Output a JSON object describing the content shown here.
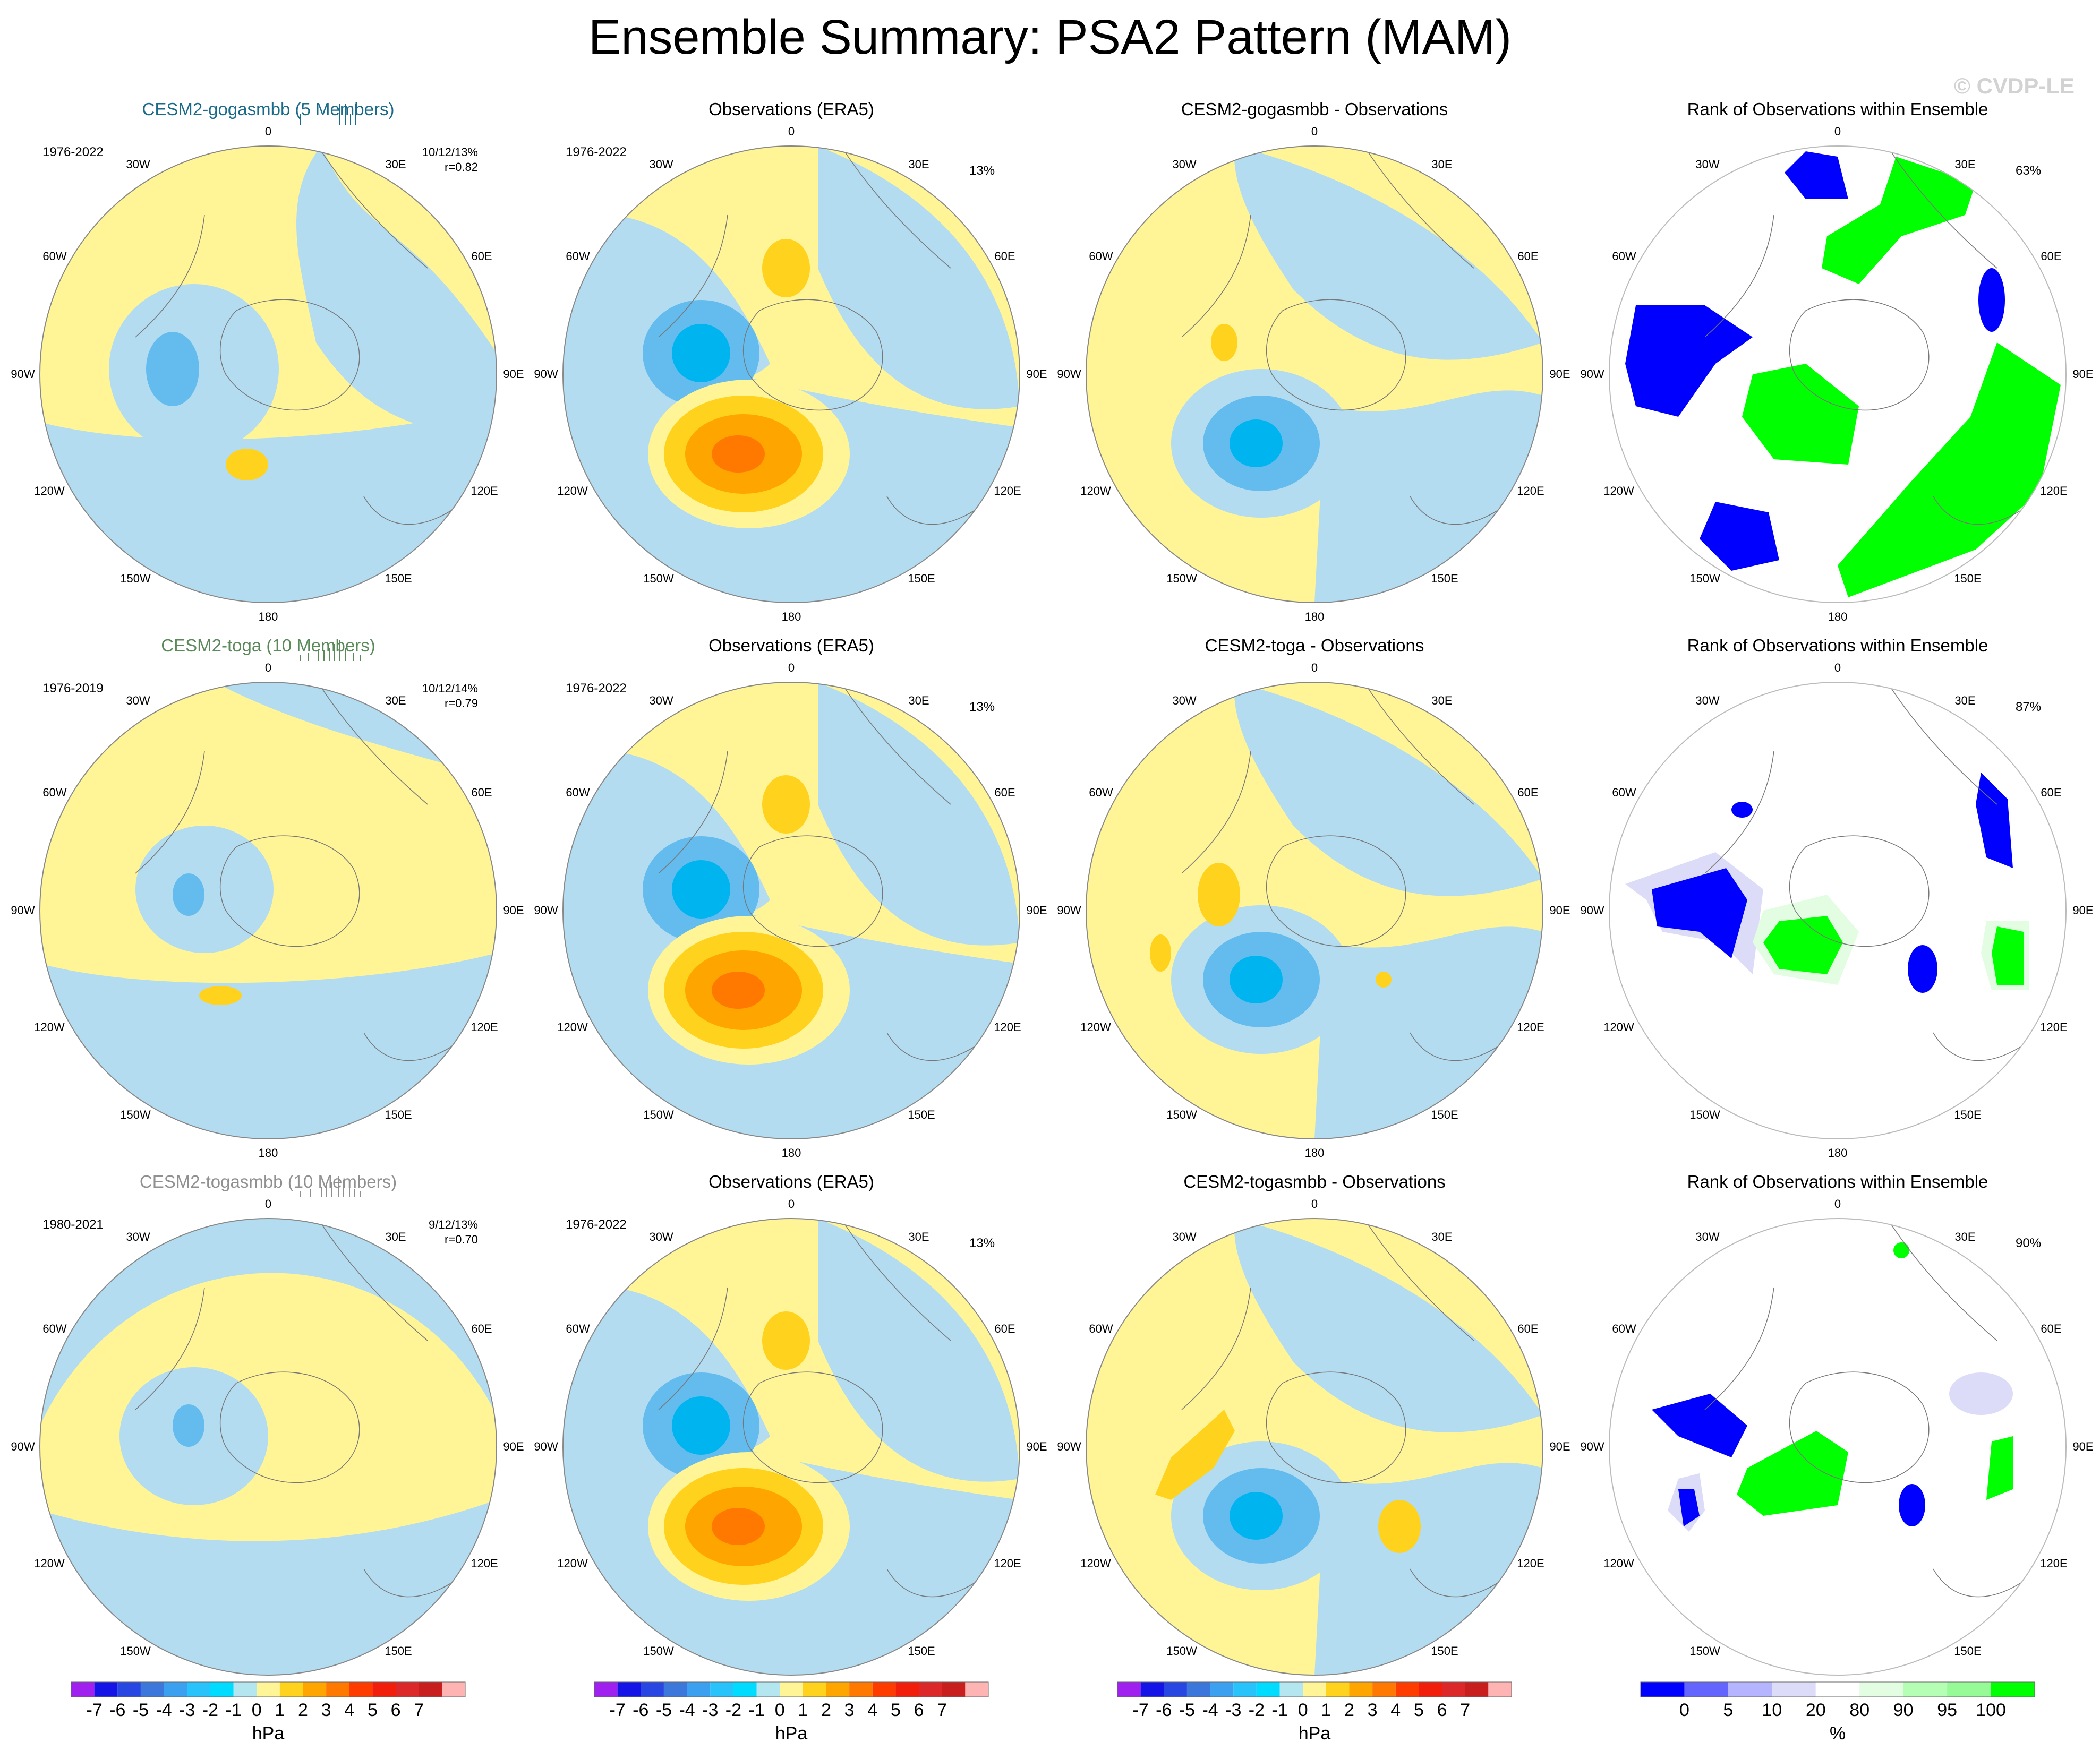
{
  "title": "Ensemble Summary: PSA2 Pattern (MAM)",
  "watermark": "© CVDP-LE",
  "colors": {
    "neg1": "#b3dcf0",
    "neg2": "#64bcee",
    "neg3": "#00b4f0",
    "pos1": "#fff596",
    "pos2": "#ffd21e",
    "pos3": "#ffa500",
    "pos4": "#ff7800",
    "rank_blue": "#0000ff",
    "rank_green": "#00ff00",
    "rank_lightblue": "#dcdcf8",
    "rank_lightgreen": "#e2fde2",
    "title_blue": "#1a6b8a",
    "title_green": "#5a8a5a",
    "title_gray": "#909090"
  },
  "map_labels": {
    "top": "0",
    "bottom": "180",
    "upper_left": "30W",
    "upper_right": "30E",
    "left_upper": "60W",
    "right_upper": "60E",
    "left": "90W",
    "right": "90E",
    "left_lower": "120W",
    "right_lower": "120E",
    "lower_left": "150W",
    "lower_right": "150E"
  },
  "rows": [
    {
      "model": {
        "title": "CESM2-gogasmbb (5 Members)",
        "years": "1976-2022",
        "stats": "10/12/13%",
        "r": "r=0.82"
      },
      "obs": {
        "title": "Observations (ERA5)",
        "years": "1976-2022",
        "pct": "13%"
      },
      "diff": {
        "title": "CESM2-gogasmbb - Observations"
      },
      "rank": {
        "title": "Rank of Observations within Ensemble",
        "pct": "63%"
      }
    },
    {
      "model": {
        "title": "CESM2-toga (10 Members)",
        "years": "1976-2019",
        "stats": "10/12/14%",
        "r": "r=0.79"
      },
      "obs": {
        "title": "Observations (ERA5)",
        "years": "1976-2022",
        "pct": "13%"
      },
      "diff": {
        "title": "CESM2-toga - Observations"
      },
      "rank": {
        "title": "Rank of Observations within Ensemble",
        "pct": "87%"
      }
    },
    {
      "model": {
        "title": "CESM2-togasmbb (10 Members)",
        "years": "1980-2021",
        "stats": "9/12/13%",
        "r": "r=0.70"
      },
      "obs": {
        "title": "Observations (ERA5)",
        "years": "1976-2022",
        "pct": "13%"
      },
      "diff": {
        "title": "CESM2-togasmbb - Observations"
      },
      "rank": {
        "title": "Rank of Observations within Ensemble",
        "pct": "90%"
      }
    }
  ],
  "colorbar_hpa": {
    "ticks": [
      "-7",
      "-6",
      "-5",
      "-4",
      "-3",
      "-2",
      "-1",
      "0",
      "1",
      "2",
      "3",
      "4",
      "5",
      "6",
      "7"
    ],
    "colors": [
      "#a020f0",
      "#1414e6",
      "#2846e1",
      "#3c78dc",
      "#3ca0f0",
      "#28c3fa",
      "#00dcff",
      "#b4e6f0",
      "#fff596",
      "#ffd21e",
      "#ffa500",
      "#ff7800",
      "#ff3c00",
      "#f01e0a",
      "#dc2828",
      "#c81e1e",
      "#ffb4b4"
    ],
    "unit": "hPa"
  },
  "colorbar_rank": {
    "ticks": [
      "0",
      "5",
      "10",
      "20",
      "80",
      "90",
      "95",
      "100"
    ],
    "colors": [
      "#0000ff",
      "#6464ff",
      "#b4b4ff",
      "#dcdcf8",
      "#ffffff",
      "#e2fde2",
      "#b4ffb4",
      "#96fa96",
      "#00ff00"
    ],
    "unit": "%"
  }
}
